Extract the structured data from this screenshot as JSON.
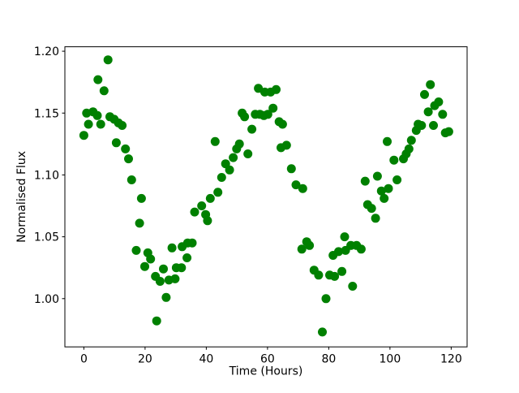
{
  "chart_data": {
    "type": "scatter",
    "title": "",
    "xlabel": "Time (Hours)",
    "ylabel": "Normalised Flux",
    "background_color": "#ffffff",
    "marker": {
      "shape": "circle",
      "color": "#008000",
      "radius_px": 5.5
    },
    "grid": false,
    "legend": null,
    "xlim": [
      -6.2,
      125.2
    ],
    "ylim": [
      0.961,
      1.2036
    ],
    "xticks": [
      0,
      20,
      40,
      60,
      80,
      100,
      120
    ],
    "xtick_labels": [
      "0",
      "20",
      "40",
      "60",
      "80",
      "100",
      "120"
    ],
    "yticks": [
      1.0,
      1.05,
      1.1,
      1.15,
      1.2
    ],
    "ytick_labels": [
      "1.00",
      "1.05",
      "1.10",
      "1.15",
      "1.20"
    ],
    "points": [
      [
        0.0,
        1.132
      ],
      [
        0.9,
        1.15
      ],
      [
        1.5,
        1.141
      ],
      [
        3.0,
        1.151
      ],
      [
        4.4,
        1.148
      ],
      [
        4.6,
        1.177
      ],
      [
        5.5,
        1.141
      ],
      [
        6.6,
        1.168
      ],
      [
        7.9,
        1.193
      ],
      [
        8.5,
        1.147
      ],
      [
        9.9,
        1.145
      ],
      [
        10.6,
        1.126
      ],
      [
        11.3,
        1.142
      ],
      [
        12.5,
        1.14
      ],
      [
        13.6,
        1.121
      ],
      [
        14.6,
        1.113
      ],
      [
        15.6,
        1.096
      ],
      [
        17.1,
        1.039
      ],
      [
        18.2,
        1.061
      ],
      [
        18.8,
        1.081
      ],
      [
        19.9,
        1.026
      ],
      [
        20.9,
        1.037
      ],
      [
        21.8,
        1.032
      ],
      [
        23.4,
        1.018
      ],
      [
        23.8,
        0.982
      ],
      [
        24.9,
        1.014
      ],
      [
        26.0,
        1.024
      ],
      [
        26.9,
        1.001
      ],
      [
        27.8,
        1.015
      ],
      [
        28.8,
        1.041
      ],
      [
        29.8,
        1.016
      ],
      [
        30.2,
        1.025
      ],
      [
        31.9,
        1.025
      ],
      [
        32.1,
        1.042
      ],
      [
        33.7,
        1.033
      ],
      [
        33.9,
        1.045
      ],
      [
        35.4,
        1.045
      ],
      [
        36.2,
        1.07
      ],
      [
        38.5,
        1.075
      ],
      [
        39.8,
        1.068
      ],
      [
        40.4,
        1.063
      ],
      [
        41.3,
        1.081
      ],
      [
        42.9,
        1.127
      ],
      [
        43.8,
        1.086
      ],
      [
        45.0,
        1.098
      ],
      [
        46.3,
        1.109
      ],
      [
        47.6,
        1.104
      ],
      [
        48.8,
        1.114
      ],
      [
        49.9,
        1.121
      ],
      [
        50.8,
        1.125
      ],
      [
        51.7,
        1.15
      ],
      [
        52.5,
        1.147
      ],
      [
        53.6,
        1.117
      ],
      [
        54.9,
        1.137
      ],
      [
        56.0,
        1.149
      ],
      [
        57.0,
        1.17
      ],
      [
        57.5,
        1.149
      ],
      [
        58.8,
        1.148
      ],
      [
        59.1,
        1.167
      ],
      [
        60.1,
        1.149
      ],
      [
        61.0,
        1.167
      ],
      [
        61.8,
        1.154
      ],
      [
        62.8,
        1.169
      ],
      [
        63.8,
        1.143
      ],
      [
        64.4,
        1.122
      ],
      [
        64.9,
        1.141
      ],
      [
        66.2,
        1.124
      ],
      [
        67.8,
        1.105
      ],
      [
        69.3,
        1.092
      ],
      [
        71.2,
        1.04
      ],
      [
        71.5,
        1.089
      ],
      [
        72.8,
        1.046
      ],
      [
        73.7,
        1.043
      ],
      [
        75.2,
        1.023
      ],
      [
        76.7,
        1.019
      ],
      [
        77.9,
        0.973
      ],
      [
        79.1,
        1.0
      ],
      [
        80.3,
        1.019
      ],
      [
        81.4,
        1.035
      ],
      [
        81.9,
        1.018
      ],
      [
        83.2,
        1.038
      ],
      [
        84.3,
        1.022
      ],
      [
        85.2,
        1.05
      ],
      [
        85.5,
        1.039
      ],
      [
        87.2,
        1.043
      ],
      [
        87.8,
        1.01
      ],
      [
        89.1,
        1.043
      ],
      [
        90.6,
        1.04
      ],
      [
        91.9,
        1.095
      ],
      [
        92.7,
        1.076
      ],
      [
        94.0,
        1.073
      ],
      [
        95.3,
        1.065
      ],
      [
        95.9,
        1.099
      ],
      [
        97.2,
        1.087
      ],
      [
        98.1,
        1.081
      ],
      [
        99.1,
        1.127
      ],
      [
        99.5,
        1.089
      ],
      [
        101.3,
        1.112
      ],
      [
        102.3,
        1.096
      ],
      [
        104.4,
        1.113
      ],
      [
        105.3,
        1.117
      ],
      [
        106.2,
        1.121
      ],
      [
        107.0,
        1.128
      ],
      [
        108.6,
        1.136
      ],
      [
        109.2,
        1.141
      ],
      [
        110.3,
        1.14
      ],
      [
        111.3,
        1.165
      ],
      [
        112.5,
        1.151
      ],
      [
        113.2,
        1.173
      ],
      [
        114.2,
        1.14
      ],
      [
        114.6,
        1.156
      ],
      [
        115.9,
        1.159
      ],
      [
        117.2,
        1.149
      ],
      [
        118.1,
        1.134
      ],
      [
        119.2,
        1.135
      ]
    ]
  }
}
